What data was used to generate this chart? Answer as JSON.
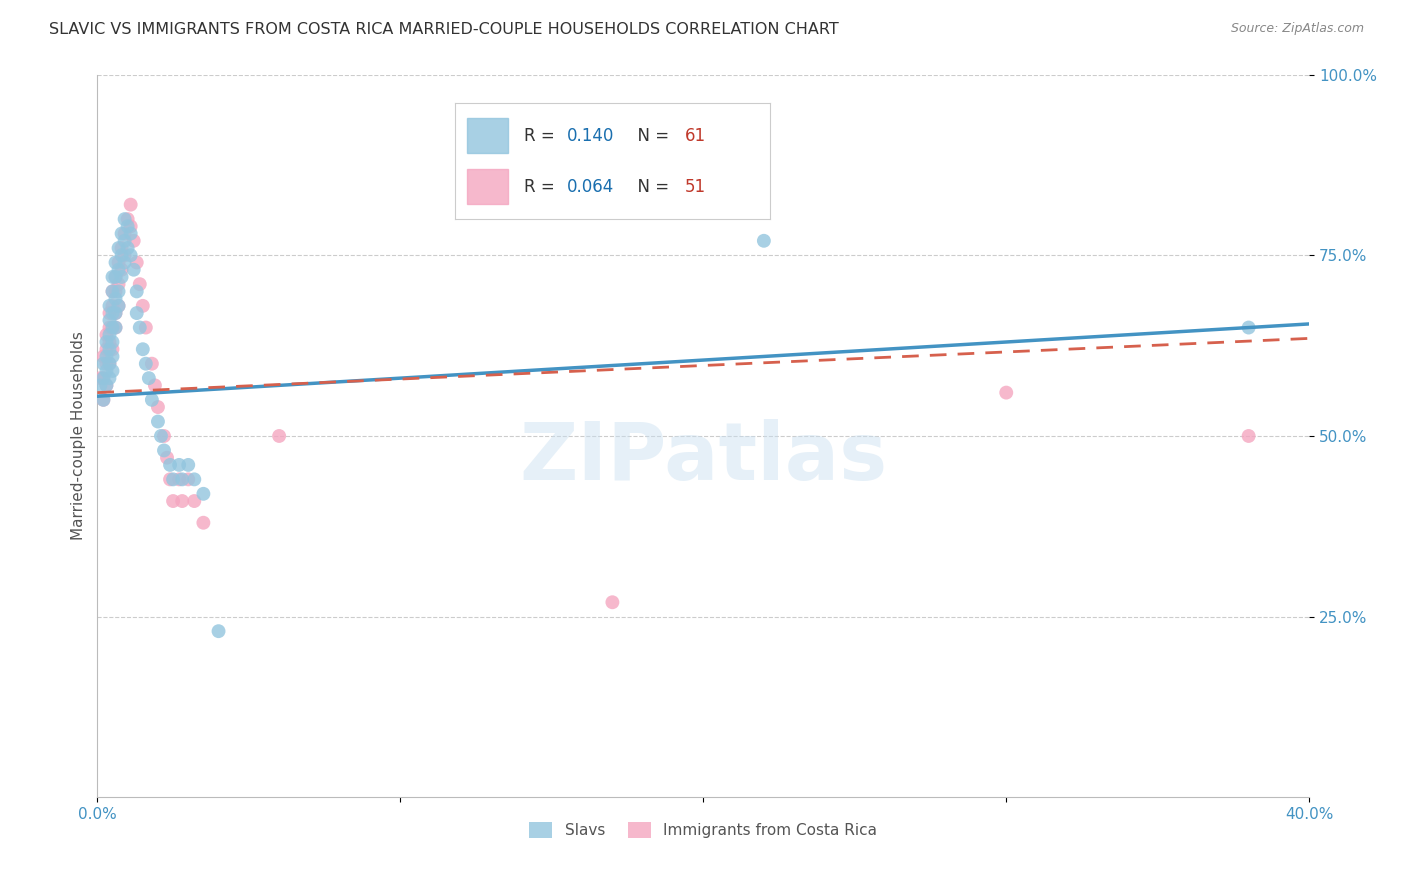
{
  "title": "SLAVIC VS IMMIGRANTS FROM COSTA RICA MARRIED-COUPLE HOUSEHOLDS CORRELATION CHART",
  "source": "Source: ZipAtlas.com",
  "ylabel": "Married-couple Households",
  "xlim": [
    0,
    0.4
  ],
  "ylim": [
    0,
    1.0
  ],
  "xtick_labels": [
    "0.0%",
    "",
    "",
    "",
    "40.0%"
  ],
  "xtick_vals": [
    0.0,
    0.1,
    0.2,
    0.3,
    0.4
  ],
  "ytick_labels": [
    "25.0%",
    "50.0%",
    "75.0%",
    "100.0%"
  ],
  "ytick_vals": [
    0.25,
    0.5,
    0.75,
    1.0
  ],
  "slavs_R": 0.14,
  "slavs_N": 61,
  "cr_R": 0.064,
  "cr_N": 51,
  "slavs_color": "#92c5de",
  "cr_color": "#f4a6c0",
  "trendline_slavs_color": "#4393c3",
  "trendline_cr_color": "#d6604d",
  "background_color": "#ffffff",
  "grid_color": "#cccccc",
  "title_color": "#333333",
  "axis_label_color": "#4393c3",
  "watermark": "ZIPatlas",
  "legend_R_color": "#1a6faf",
  "legend_N_color": "#c0392b",
  "slavs_x": [
    0.001,
    0.002,
    0.002,
    0.002,
    0.003,
    0.003,
    0.003,
    0.003,
    0.004,
    0.004,
    0.004,
    0.004,
    0.004,
    0.004,
    0.005,
    0.005,
    0.005,
    0.005,
    0.005,
    0.005,
    0.005,
    0.006,
    0.006,
    0.006,
    0.006,
    0.006,
    0.007,
    0.007,
    0.007,
    0.007,
    0.008,
    0.008,
    0.008,
    0.009,
    0.009,
    0.009,
    0.01,
    0.01,
    0.011,
    0.011,
    0.012,
    0.013,
    0.013,
    0.014,
    0.015,
    0.016,
    0.017,
    0.018,
    0.02,
    0.021,
    0.022,
    0.024,
    0.025,
    0.027,
    0.028,
    0.03,
    0.032,
    0.035,
    0.04,
    0.22,
    0.38
  ],
  "slavs_y": [
    0.57,
    0.6,
    0.58,
    0.55,
    0.63,
    0.61,
    0.59,
    0.57,
    0.68,
    0.66,
    0.64,
    0.62,
    0.6,
    0.58,
    0.72,
    0.7,
    0.67,
    0.65,
    0.63,
    0.61,
    0.59,
    0.74,
    0.72,
    0.69,
    0.67,
    0.65,
    0.76,
    0.73,
    0.7,
    0.68,
    0.78,
    0.75,
    0.72,
    0.8,
    0.77,
    0.74,
    0.79,
    0.76,
    0.78,
    0.75,
    0.73,
    0.7,
    0.67,
    0.65,
    0.62,
    0.6,
    0.58,
    0.55,
    0.52,
    0.5,
    0.48,
    0.46,
    0.44,
    0.46,
    0.44,
    0.46,
    0.44,
    0.42,
    0.23,
    0.77,
    0.65
  ],
  "cr_x": [
    0.001,
    0.002,
    0.002,
    0.002,
    0.003,
    0.003,
    0.003,
    0.003,
    0.004,
    0.004,
    0.004,
    0.004,
    0.005,
    0.005,
    0.005,
    0.005,
    0.006,
    0.006,
    0.006,
    0.006,
    0.007,
    0.007,
    0.007,
    0.008,
    0.008,
    0.009,
    0.009,
    0.01,
    0.011,
    0.011,
    0.012,
    0.013,
    0.014,
    0.015,
    0.016,
    0.018,
    0.019,
    0.02,
    0.022,
    0.023,
    0.024,
    0.025,
    0.027,
    0.028,
    0.03,
    0.032,
    0.035,
    0.06,
    0.17,
    0.3,
    0.38
  ],
  "cr_y": [
    0.58,
    0.61,
    0.58,
    0.55,
    0.64,
    0.62,
    0.6,
    0.57,
    0.67,
    0.65,
    0.63,
    0.6,
    0.7,
    0.68,
    0.65,
    0.62,
    0.72,
    0.7,
    0.67,
    0.65,
    0.74,
    0.71,
    0.68,
    0.76,
    0.73,
    0.78,
    0.75,
    0.8,
    0.82,
    0.79,
    0.77,
    0.74,
    0.71,
    0.68,
    0.65,
    0.6,
    0.57,
    0.54,
    0.5,
    0.47,
    0.44,
    0.41,
    0.44,
    0.41,
    0.44,
    0.41,
    0.38,
    0.5,
    0.27,
    0.56,
    0.5
  ],
  "trendline_slavs_x0": 0.0,
  "trendline_slavs_x1": 0.4,
  "trendline_slavs_y0": 0.555,
  "trendline_slavs_y1": 0.655,
  "trendline_cr_x0": 0.0,
  "trendline_cr_x1": 0.4,
  "trendline_cr_y0": 0.56,
  "trendline_cr_y1": 0.635
}
